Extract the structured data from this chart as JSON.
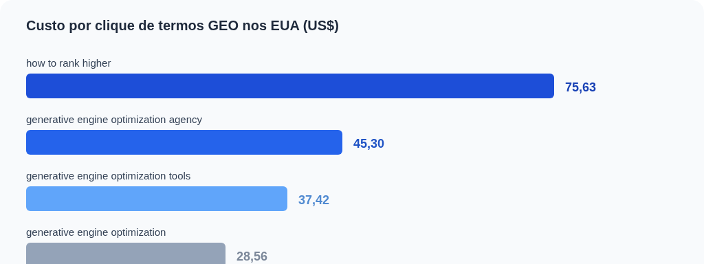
{
  "chart_data": {
    "type": "bar",
    "orientation": "horizontal",
    "title": "Custo por clique de termos GEO nos EUA (US$)",
    "categories": [
      "how to rank higher",
      "generative engine optimization agency",
      "generative engine optimization tools",
      "generative engine optimization"
    ],
    "values": [
      75.63,
      45.3,
      37.42,
      28.56
    ],
    "colors": [
      "#1d4ed8",
      "#2563eb",
      "#60a5fa",
      "#94a3b8"
    ],
    "value_labels": [
      "75,63",
      "45,30",
      "37,42",
      "28,56"
    ]
  }
}
